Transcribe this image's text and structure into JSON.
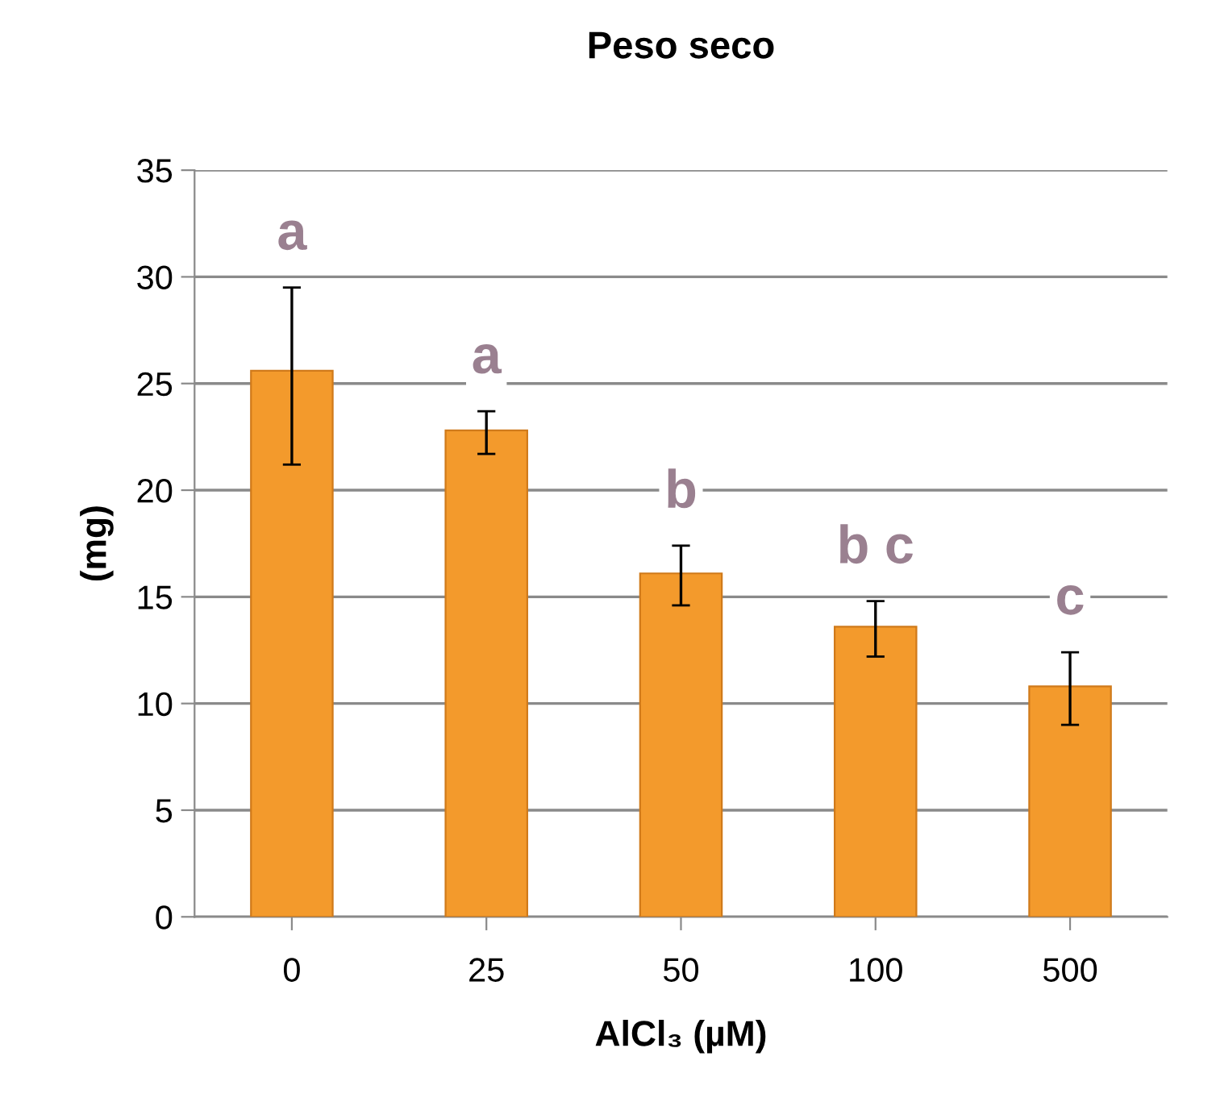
{
  "chart_data": {
    "type": "bar",
    "title": "Peso seco",
    "xlabel": "AlCl₃ (µM)",
    "ylabel": "(mg)",
    "categories": [
      "0",
      "25",
      "50",
      "100",
      "500"
    ],
    "values": [
      25.6,
      22.8,
      16.1,
      13.6,
      10.8
    ],
    "errors": [
      [
        21.2,
        29.5
      ],
      [
        21.7,
        23.7
      ],
      [
        14.6,
        17.4
      ],
      [
        12.2,
        14.8
      ],
      [
        9.0,
        12.4
      ]
    ],
    "color": "#f39a2c",
    "ylim": [
      0,
      35
    ],
    "yticks": [
      0,
      5,
      10,
      15,
      20,
      25,
      30,
      35
    ],
    "grid": "y",
    "annotations": [
      "a",
      "a",
      "b",
      "b c",
      "c"
    ]
  }
}
